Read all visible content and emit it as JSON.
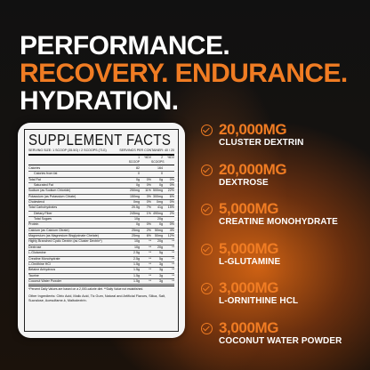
{
  "headline": {
    "line1": "PERFORMANCE.",
    "line2": "RECOVERY. ENDURANCE.",
    "line3": "HYDRATION."
  },
  "colors": {
    "accent": "#f07c23",
    "text": "#ffffff",
    "panel": "#f4f4f4"
  },
  "facts": {
    "title": "SUPPLEMENT FACTS",
    "serving_size": "SERVING SIZE: 1 SCOOP (35.5G) / 2 SCOOPS (71G)",
    "servings_per_container": "SERVINGS PER CONTAINER: 40 / 20",
    "columns": [
      "1 SCOOP",
      "%DV",
      "2 SCOOPS",
      "%DV"
    ],
    "rows": [
      {
        "name": "Calories",
        "indent": false,
        "v": [
          "82",
          "",
          "164",
          ""
        ]
      },
      {
        "name": "Calories from fat",
        "indent": true,
        "v": [
          "0",
          "",
          "0",
          ""
        ]
      },
      {
        "name": "Total Fat",
        "indent": false,
        "v": [
          "0g",
          "0%",
          "0g",
          "0%"
        ]
      },
      {
        "name": "Saturated Fat",
        "indent": true,
        "v": [
          "0g",
          "0%",
          "0g",
          "0%"
        ]
      },
      {
        "name": "Sodium (as Sodium Chloride)",
        "indent": false,
        "v": [
          "250mg",
          "11%",
          "500mg",
          "22%"
        ]
      },
      {
        "name": "Potassium (as Potassium Citrate)",
        "indent": false,
        "v": [
          "150mg",
          "3%",
          "300mg",
          "6%"
        ]
      },
      {
        "name": "Cholesterol",
        "indent": false,
        "v": [
          "0mg",
          "0%",
          "0mg",
          "0%"
        ]
      },
      {
        "name": "Total Carbohydrates",
        "indent": false,
        "v": [
          "20.5g",
          "7%",
          "41g",
          "15%"
        ]
      },
      {
        "name": "Dietary Fiber",
        "indent": true,
        "v": [
          "245mg",
          "1%",
          "490mg",
          "2%"
        ]
      },
      {
        "name": "Total Sugars",
        "indent": true,
        "v": [
          "10g",
          "",
          "20g",
          ""
        ]
      },
      {
        "name": "Protein",
        "indent": false,
        "v": [
          "0g",
          "0%",
          "0g",
          "0%"
        ]
      },
      {
        "name": "Calcium (as Calcium Citrate)",
        "indent": false,
        "v": [
          "25mg",
          "2%",
          "50mg",
          "4%"
        ]
      },
      {
        "name": "Magnesium (as Magnesium Bisglycinate Chelate)",
        "indent": false,
        "v": [
          "25mg",
          "6%",
          "50mg",
          "12%"
        ]
      },
      {
        "name": "Highly Branched Cyclic Dextrin (as Cluster Dextrin*)",
        "indent": false,
        "v": [
          "10g",
          "**",
          "20g",
          "**"
        ]
      },
      {
        "name": "Dextrose",
        "indent": false,
        "v": [
          "10g",
          "**",
          "20g",
          "**"
        ]
      },
      {
        "name": "L-Glutamine",
        "indent": false,
        "v": [
          "2.5g",
          "**",
          "5g",
          "**"
        ]
      },
      {
        "name": "Creatine Monohydrate",
        "indent": false,
        "v": [
          "2.5g",
          "**",
          "5g",
          "**"
        ]
      },
      {
        "name": "L-Ornithine HCl",
        "indent": false,
        "v": [
          "1.5g",
          "**",
          "3g",
          "**"
        ]
      },
      {
        "name": "Betaine Anhydrous",
        "indent": false,
        "v": [
          "1.5g",
          "**",
          "3g",
          "**"
        ]
      },
      {
        "name": "Taurine",
        "indent": false,
        "v": [
          "1.5g",
          "**",
          "3g",
          "**"
        ]
      },
      {
        "name": "Coconut Water Powder",
        "indent": false,
        "v": [
          "1.5g",
          "**",
          "3g",
          "**"
        ]
      }
    ],
    "footnote": "*Percent Daily Values are based on a 2,000-calorie diet.   **Daily Value not established.",
    "other_ingredients": "Other Ingredients: Citric Acid, Malic Acid, Tic Gum, Natural and Artificial Flavors, Silica, Salt, Sucralose, Acesulfame-k, Maltodextrin."
  },
  "ingredients": [
    {
      "amount": "20,000MG",
      "name": "CLUSTER DEXTRIN"
    },
    {
      "amount": "20,000MG",
      "name": "DEXTROSE"
    },
    {
      "amount": "5,000MG",
      "name": "CREATINE MONOHYDRATE"
    },
    {
      "amount": "5,000MG",
      "name": "L-GLUTAMINE"
    },
    {
      "amount": "3,000MG",
      "name": "L-ORNITHINE HCL"
    },
    {
      "amount": "3,000MG",
      "name": "COCONUT WATER POWDER"
    }
  ]
}
